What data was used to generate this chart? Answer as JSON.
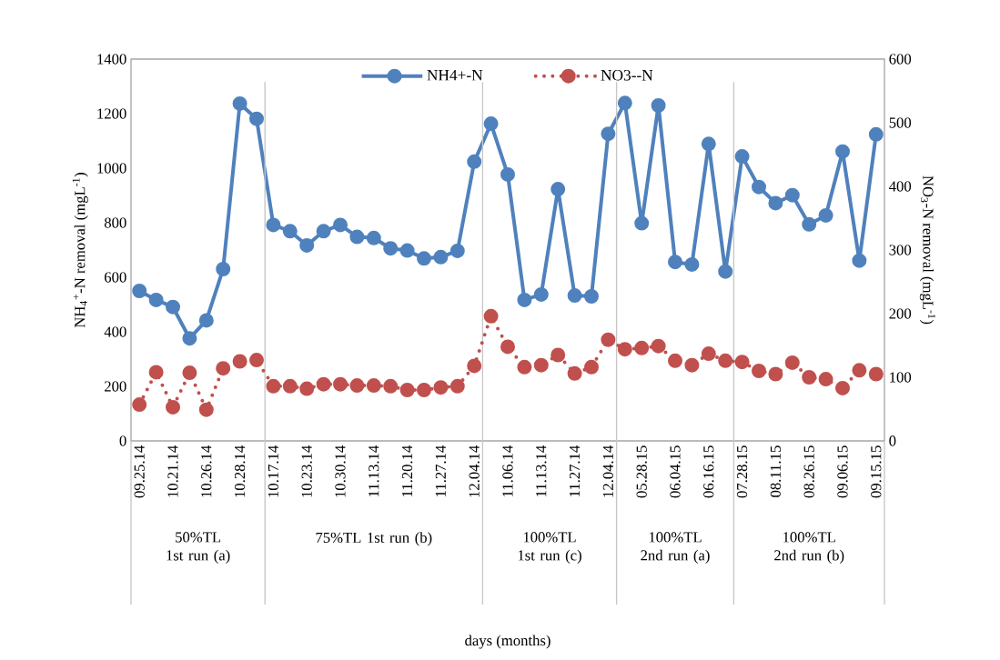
{
  "chart_data": {
    "type": "line",
    "ylabel": "NH$_{4}$$^{+}$-N removal (mgL$^{-1}$)",
    "y2label": "NO$_{3}$-N removal (mgL$^{-1}$)",
    "categories": [
      "09.25.14",
      null,
      "10.21.14",
      null,
      "10.26.14",
      null,
      "10.28.14",
      null,
      "10.17.14",
      null,
      "10.23.14",
      null,
      "10.30.14",
      null,
      "11.13.14",
      null,
      "11.20.14",
      null,
      "11.27.14",
      null,
      "12.04.14",
      null,
      "11.06.14",
      null,
      "11.13.14",
      null,
      "11.27.14",
      null,
      "12.04.14",
      null,
      "05.28.15",
      null,
      "06.04.15",
      null,
      "06.16.15",
      null,
      "07.28.15",
      null,
      "08.11.15",
      null,
      "08.26.15",
      null,
      "09.06.15",
      null,
      "09.15.15"
    ],
    "series": [
      {
        "name": "NH4+-N",
        "color": "#4f81bd",
        "line_style": "solid",
        "values": [
          550,
          517,
          491,
          376,
          442,
          630,
          1237,
          1181,
          792,
          769,
          717,
          769,
          792,
          748,
          744,
          706,
          698,
          669,
          674,
          697,
          1024,
          1163,
          977,
          517,
          537,
          923,
          533,
          530,
          1126,
          1239,
          798,
          1230,
          656,
          647,
          1089,
          621,
          1043,
          931,
          872,
          901,
          794,
          827,
          1061,
          661,
          1124
        ]
      },
      {
        "name": "NO3--N",
        "color": "#c0504d",
        "line_style": "dotted",
        "axis": "y2",
        "values": [
          57,
          108,
          53,
          107,
          49,
          114,
          125,
          127,
          86,
          86,
          82,
          89,
          89,
          87,
          87,
          86,
          80,
          80,
          84,
          86,
          118,
          196,
          148,
          116,
          119,
          135,
          106,
          116,
          159,
          144,
          146,
          149,
          126,
          119,
          137,
          126,
          124,
          110,
          105,
          123,
          100,
          97,
          83,
          111,
          105
        ]
      }
    ],
    "ylim": [
      0,
      1400
    ],
    "yticks": [
      0,
      200,
      400,
      600,
      800,
      1000,
      1200,
      1400
    ],
    "y2lim": [
      0,
      600
    ],
    "y2ticks": [
      0,
      100,
      200,
      300,
      400,
      500,
      600
    ],
    "marker": "circle",
    "legend": "top",
    "grid": false,
    "annotations": [
      "50%TL 1st run (a)",
      "75%TL 1st run (b)",
      "100%TL 1st run (c)",
      "100%TL 2nd run (a)",
      "100%TL 2nd run (b)",
      "days (months)"
    ]
  }
}
